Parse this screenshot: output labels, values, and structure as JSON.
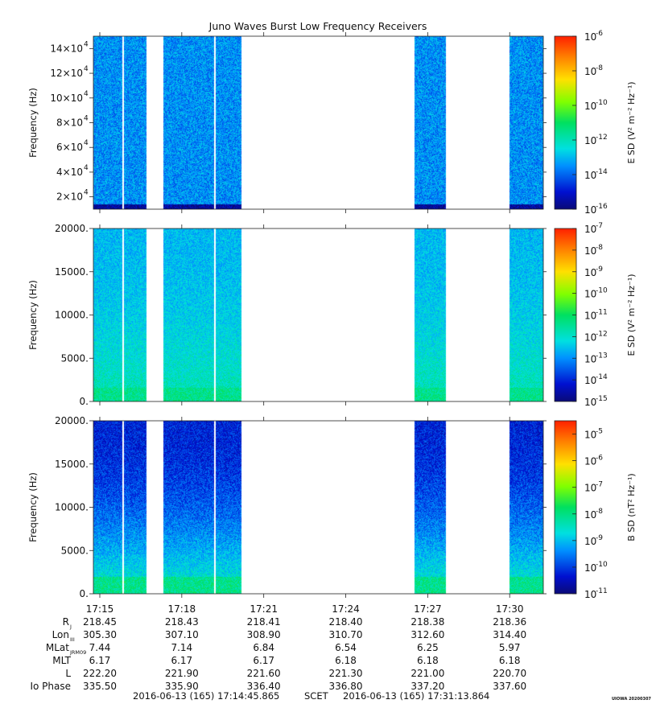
{
  "title": "Juno Waves Burst Low Frequency Receivers",
  "chart_data": [
    {
      "type": "heatmap",
      "ylabel": "Frequency (Hz)",
      "ylim": [
        10000,
        150000
      ],
      "yticks": [
        20000,
        40000,
        60000,
        80000,
        100000,
        120000,
        140000
      ],
      "ytick_labels": [
        {
          "m": "2×10",
          "e": "4"
        },
        {
          "m": "4×10",
          "e": "4"
        },
        {
          "m": "6×10",
          "e": "4"
        },
        {
          "m": "8×10",
          "e": "4"
        },
        {
          "m": "10×10",
          "e": "4"
        },
        {
          "m": "12×10",
          "e": "4"
        },
        {
          "m": "14×10",
          "e": "4"
        }
      ],
      "colorbar_label": "E SD (V² m⁻² Hz⁻¹)",
      "cbar_range_exp": [
        -16,
        -6
      ],
      "cbar_ticks": [
        "-16",
        "-14",
        "-12",
        "-10",
        "-8",
        "-6"
      ],
      "background_level": 0.25,
      "noise": 0.09,
      "low_band": {
        "level": 0.03,
        "cutoff": 0.03
      },
      "gradient": 0
    },
    {
      "type": "heatmap",
      "ylabel": "Frequency (Hz)",
      "ylim": [
        0,
        20000
      ],
      "yticks": [
        0,
        5000,
        10000,
        15000,
        20000
      ],
      "ytick_labels": [
        {
          "m": "0.",
          "e": ""
        },
        {
          "m": "5000.",
          "e": ""
        },
        {
          "m": "10000.",
          "e": ""
        },
        {
          "m": "15000.",
          "e": ""
        },
        {
          "m": "20000.",
          "e": ""
        }
      ],
      "colorbar_label": "E SD (V² m⁻² Hz⁻¹)",
      "cbar_range_exp": [
        -15,
        -7
      ],
      "cbar_ticks": [
        "-15",
        "-14",
        "-13",
        "-12",
        "-11",
        "-10",
        "-9",
        "-8",
        "-7"
      ],
      "background_level": 0.3,
      "noise": 0.07,
      "low_band": {
        "level": 0.45,
        "cutoff": 0.08
      },
      "gradient": 0.12
    },
    {
      "type": "heatmap",
      "ylabel": "Frequency (Hz)",
      "ylim": [
        0,
        20000
      ],
      "yticks": [
        0,
        5000,
        10000,
        15000,
        20000
      ],
      "ytick_labels": [
        {
          "m": "0.",
          "e": ""
        },
        {
          "m": "5000.",
          "e": ""
        },
        {
          "m": "10000.",
          "e": ""
        },
        {
          "m": "15000.",
          "e": ""
        },
        {
          "m": "20000.",
          "e": ""
        }
      ],
      "colorbar_label": "B SD (nT² Hz⁻¹)",
      "cbar_range_exp": [
        -11,
        -4.5
      ],
      "cbar_ticks": [
        "-11",
        "-10",
        "-9",
        "-8",
        "-7",
        "-6",
        "-5"
      ],
      "background_level": 0.12,
      "noise": 0.08,
      "low_band": {
        "level": 0.45,
        "cutoff": 0.1
      },
      "gradient": 0.3
    }
  ],
  "data_segments": [
    {
      "start": "17:14:45",
      "end": "17:16:41"
    },
    {
      "start": "17:17:18",
      "end": "17:20:10"
    },
    {
      "start": "17:26:30",
      "end": "17:27:40"
    },
    {
      "start": "17:29:58",
      "end": "17:31:13"
    }
  ],
  "data_gaps_thin": [
    "17:15:50",
    "17:19:12"
  ],
  "time_range": {
    "start": "17:14:45.865",
    "end": "17:31:13.864"
  },
  "x_ticks": [
    "17:15",
    "17:18",
    "17:21",
    "17:24",
    "17:27",
    "17:30"
  ],
  "ephemeris": {
    "rows": [
      {
        "label": "R",
        "sub": "J",
        "values": [
          "218.45",
          "218.43",
          "218.41",
          "218.40",
          "218.38",
          "218.36"
        ]
      },
      {
        "label": "Lon",
        "sub": "III",
        "values": [
          "305.30",
          "307.10",
          "308.90",
          "310.70",
          "312.60",
          "314.40"
        ]
      },
      {
        "label": "MLat",
        "sub": "JRM09",
        "values": [
          "7.44",
          "7.14",
          "6.84",
          "6.54",
          "6.25",
          "5.97"
        ]
      },
      {
        "label": "MLT",
        "sub": "",
        "values": [
          "6.17",
          "6.17",
          "6.17",
          "6.18",
          "6.18",
          "6.18"
        ]
      },
      {
        "label": "L",
        "sub": "",
        "values": [
          "222.20",
          "221.90",
          "221.60",
          "221.30",
          "221.00",
          "220.70"
        ]
      },
      {
        "label": "Io Phase",
        "sub": "",
        "values": [
          "335.50",
          "335.90",
          "336.40",
          "336.80",
          "337.20",
          "337.60"
        ]
      }
    ]
  },
  "footer": {
    "start": "2016-06-13 (165) 17:14:45.865",
    "frame": "SCET",
    "end": "2016-06-13 (165) 17:31:13.864",
    "credit": "UIOWA 20200307"
  }
}
